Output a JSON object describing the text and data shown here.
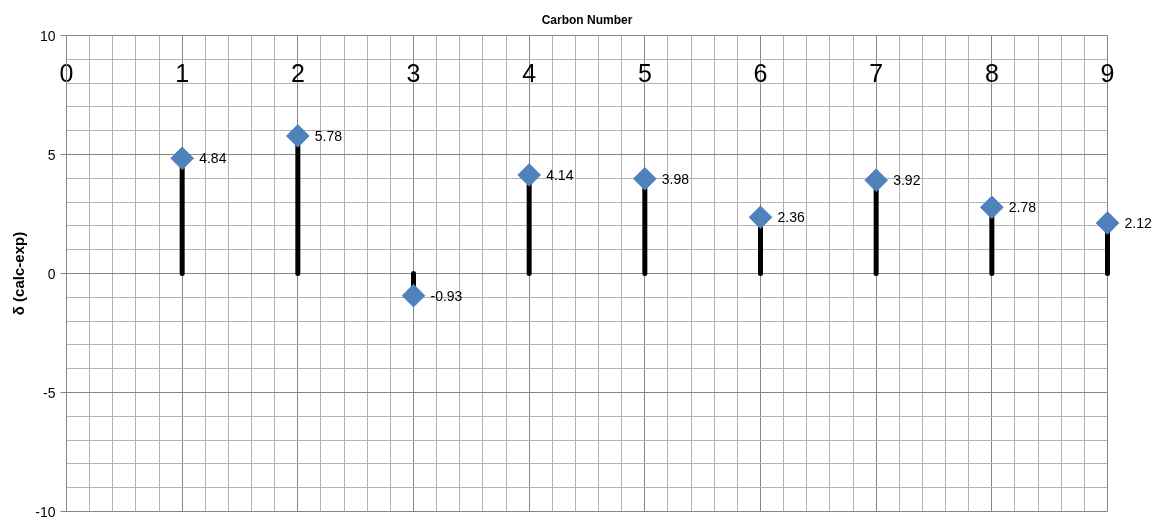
{
  "chart_data": {
    "type": "lollipop",
    "xlabel": "Carbon Number",
    "ylabel": "δ (calc-exp)",
    "x": [
      1,
      2,
      3,
      4,
      5,
      6,
      7,
      8,
      9
    ],
    "series": [
      {
        "color": "#4f81bd",
        "values": [
          4.84,
          5.78,
          -0.93,
          4.14,
          3.98,
          2.36,
          3.92,
          2.78,
          2.12
        ]
      }
    ],
    "xlim": [
      0,
      9
    ],
    "xticks": [
      0,
      1,
      2,
      3,
      4,
      5,
      6,
      7,
      8,
      9
    ],
    "ylim": [
      -10,
      10
    ],
    "yticks": [
      -10,
      -5,
      0,
      5,
      10
    ],
    "grid": true,
    "marker": "diamond",
    "data_labels": true
  }
}
